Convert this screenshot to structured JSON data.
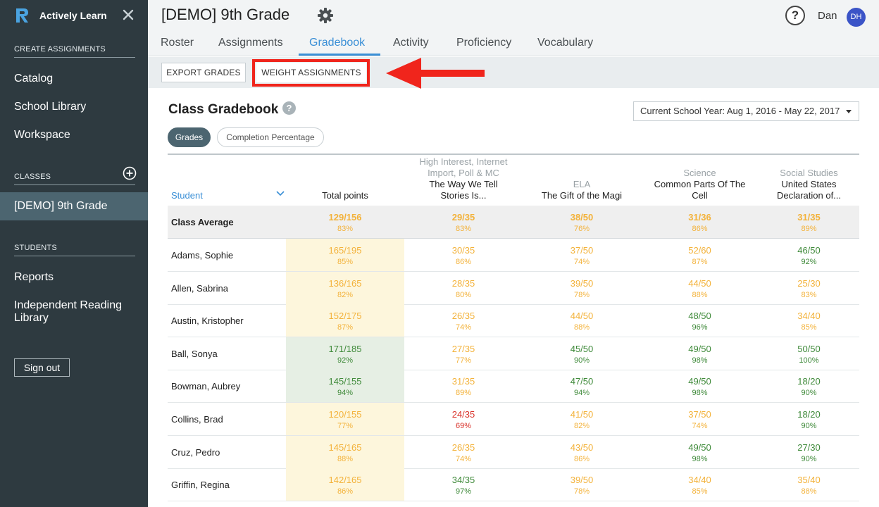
{
  "sidebar": {
    "brand": "Actively Learn",
    "sections": {
      "create": "CREATE ASSIGNMENTS",
      "classes": "CLASSES",
      "students": "STUDENTS"
    },
    "create_items": [
      "Catalog",
      "School Library",
      "Workspace"
    ],
    "active_class": "[DEMO] 9th Grade",
    "student_items": [
      "Reports",
      "Independent Reading",
      "Library"
    ],
    "sign_out": "Sign out"
  },
  "header": {
    "title": "[DEMO] 9th Grade",
    "help": "?",
    "user": "Dan",
    "initials": "DH",
    "tabs": [
      "Roster",
      "Assignments",
      "Gradebook",
      "Activity",
      "Proficiency",
      "Vocabulary"
    ],
    "active_tab": "Gradebook"
  },
  "toolbar": {
    "export": "EXPORT GRADES",
    "weight": "WEIGHT ASSIGNMENTS"
  },
  "gradebook": {
    "title": "Class Gradebook",
    "help": "?",
    "date_range": "Current School Year: Aug 1, 2016 - May 22, 2017",
    "pills": {
      "grades": "Grades",
      "completion": "Completion Percentage"
    },
    "student_header": "Student",
    "total_header": "Total points",
    "columns": [
      {
        "category": [
          "High Interest, Internet",
          "Import, Poll & MC"
        ],
        "name": [
          "The Way We Tell",
          "Stories Is..."
        ]
      },
      {
        "category": [
          "ELA"
        ],
        "name": [
          "The Gift of the Magi"
        ]
      },
      {
        "category": [
          "Science"
        ],
        "name": [
          "Common Parts Of The",
          "Cell"
        ]
      },
      {
        "category": [
          "Social Studies"
        ],
        "name": [
          "United States",
          "Declaration of..."
        ]
      }
    ],
    "average": {
      "label": "Class Average",
      "cells": [
        {
          "v": "129/156",
          "p": "83%"
        },
        {
          "v": "29/35",
          "p": "83%"
        },
        {
          "v": "38/50",
          "p": "76%"
        },
        {
          "v": "31/36",
          "p": "86%"
        },
        {
          "v": "31/35",
          "p": "89%"
        }
      ]
    },
    "rows": [
      {
        "name": "Adams, Sophie",
        "cells": [
          {
            "v": "165/195",
            "p": "85%",
            "c": "y"
          },
          {
            "v": "30/35",
            "p": "86%",
            "c": "y"
          },
          {
            "v": "37/50",
            "p": "74%",
            "c": "y"
          },
          {
            "v": "52/60",
            "p": "87%",
            "c": "y"
          },
          {
            "v": "46/50",
            "p": "92%",
            "c": "g"
          }
        ]
      },
      {
        "name": "Allen, Sabrina",
        "cells": [
          {
            "v": "136/165",
            "p": "82%",
            "c": "y"
          },
          {
            "v": "28/35",
            "p": "80%",
            "c": "y"
          },
          {
            "v": "39/50",
            "p": "78%",
            "c": "y"
          },
          {
            "v": "44/50",
            "p": "88%",
            "c": "y"
          },
          {
            "v": "25/30",
            "p": "83%",
            "c": "y"
          }
        ]
      },
      {
        "name": "Austin, Kristopher",
        "cells": [
          {
            "v": "152/175",
            "p": "87%",
            "c": "y"
          },
          {
            "v": "26/35",
            "p": "74%",
            "c": "y"
          },
          {
            "v": "44/50",
            "p": "88%",
            "c": "y"
          },
          {
            "v": "48/50",
            "p": "96%",
            "c": "g"
          },
          {
            "v": "34/40",
            "p": "85%",
            "c": "y"
          }
        ]
      },
      {
        "name": "Ball, Sonya",
        "cells": [
          {
            "v": "171/185",
            "p": "92%",
            "c": "g"
          },
          {
            "v": "27/35",
            "p": "77%",
            "c": "y"
          },
          {
            "v": "45/50",
            "p": "90%",
            "c": "g"
          },
          {
            "v": "49/50",
            "p": "98%",
            "c": "g"
          },
          {
            "v": "50/50",
            "p": "100%",
            "c": "g"
          }
        ]
      },
      {
        "name": "Bowman, Aubrey",
        "cells": [
          {
            "v": "145/155",
            "p": "94%",
            "c": "g"
          },
          {
            "v": "31/35",
            "p": "89%",
            "c": "y"
          },
          {
            "v": "47/50",
            "p": "94%",
            "c": "g"
          },
          {
            "v": "49/50",
            "p": "98%",
            "c": "g"
          },
          {
            "v": "18/20",
            "p": "90%",
            "c": "g"
          }
        ]
      },
      {
        "name": "Collins, Brad",
        "cells": [
          {
            "v": "120/155",
            "p": "77%",
            "c": "y"
          },
          {
            "v": "24/35",
            "p": "69%",
            "c": "r"
          },
          {
            "v": "41/50",
            "p": "82%",
            "c": "y"
          },
          {
            "v": "37/50",
            "p": "74%",
            "c": "y"
          },
          {
            "v": "18/20",
            "p": "90%",
            "c": "g"
          }
        ]
      },
      {
        "name": "Cruz, Pedro",
        "cells": [
          {
            "v": "145/165",
            "p": "88%",
            "c": "y"
          },
          {
            "v": "26/35",
            "p": "74%",
            "c": "y"
          },
          {
            "v": "43/50",
            "p": "86%",
            "c": "y"
          },
          {
            "v": "49/50",
            "p": "98%",
            "c": "g"
          },
          {
            "v": "27/30",
            "p": "90%",
            "c": "g"
          }
        ]
      },
      {
        "name": "Griffin, Regina",
        "cells": [
          {
            "v": "142/165",
            "p": "86%",
            "c": "y"
          },
          {
            "v": "34/35",
            "p": "97%",
            "c": "g"
          },
          {
            "v": "39/50",
            "p": "78%",
            "c": "y"
          },
          {
            "v": "34/40",
            "p": "85%",
            "c": "y"
          },
          {
            "v": "35/40",
            "p": "88%",
            "c": "y"
          }
        ]
      }
    ]
  },
  "colors": {
    "sidebar": "#2e3a40",
    "accent": "#3a8fd6",
    "warn": "#f3b23a",
    "good": "#3f8a3a",
    "bad": "#d9322a",
    "highlight": "#f0251c"
  }
}
